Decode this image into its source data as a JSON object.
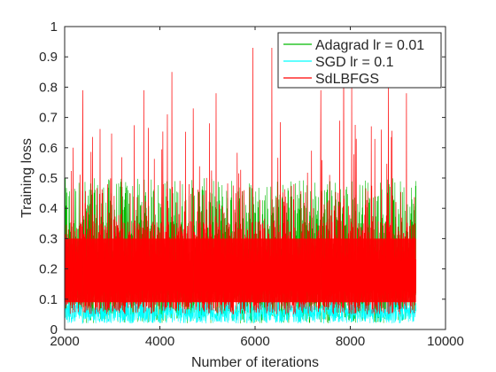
{
  "chart_data": {
    "type": "line",
    "xlabel": "Number of iterations",
    "ylabel": "Training loss",
    "xlim": [
      2000,
      10000
    ],
    "ylim": [
      0,
      1
    ],
    "xticks": [
      "2000",
      "4000",
      "6000",
      "8000",
      "10000"
    ],
    "yticks": [
      "0",
      "0.1",
      "0.2",
      "0.3",
      "0.4",
      "0.5",
      "0.6",
      "0.7",
      "0.8",
      "0.9",
      "1"
    ],
    "x_data_range": [
      2000,
      9380
    ],
    "grid": false,
    "legend_position": "top-right",
    "series": [
      {
        "name": "Adagrad lr = 0.01",
        "color": "#00bb00",
        "typical_min": 0.02,
        "typical_max": 0.5,
        "end_value": 0.49
      },
      {
        "name": "SGD lr = 0.1",
        "color": "#00ffff",
        "typical_min": 0.02,
        "typical_max": 0.12
      },
      {
        "name": "SdLBFGS",
        "color": "#ff0000",
        "typical_min": 0.05,
        "band_low": 0.09,
        "band_high": 0.3,
        "peaks": [
          {
            "x": 2180,
            "y": 0.6
          },
          {
            "x": 2380,
            "y": 0.79
          },
          {
            "x": 3660,
            "y": 0.79
          },
          {
            "x": 4160,
            "y": 0.71
          },
          {
            "x": 4250,
            "y": 0.85
          },
          {
            "x": 4700,
            "y": 0.73
          },
          {
            "x": 5180,
            "y": 0.78
          },
          {
            "x": 5950,
            "y": 0.93
          },
          {
            "x": 6350,
            "y": 0.93
          },
          {
            "x": 7380,
            "y": 0.79
          },
          {
            "x": 7860,
            "y": 0.97
          },
          {
            "x": 8030,
            "y": 0.8
          },
          {
            "x": 8800,
            "y": 0.82
          },
          {
            "x": 9180,
            "y": 0.78
          }
        ]
      }
    ]
  }
}
